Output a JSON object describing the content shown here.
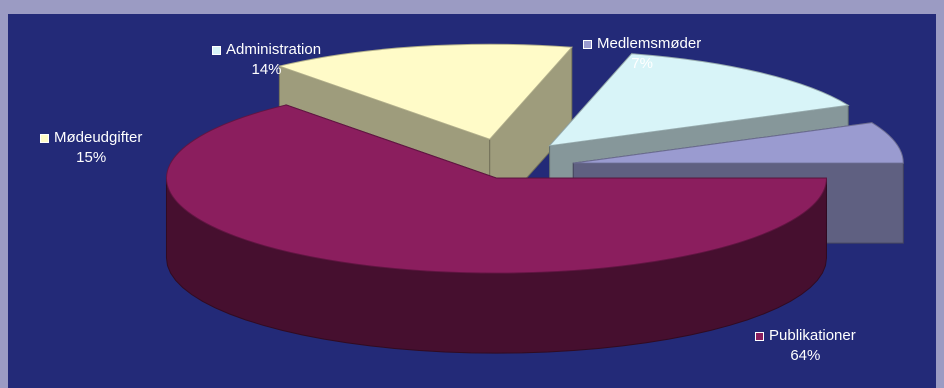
{
  "chart_data": {
    "type": "pie",
    "title": "",
    "three_d": true,
    "exploded": true,
    "slices": [
      {
        "label": "Publikationer",
        "value": 64,
        "value_label": "64%",
        "color": "#8b1e5e"
      },
      {
        "label": "Mødeudgifter",
        "value": 15,
        "value_label": "15%",
        "color": "#fffbc8"
      },
      {
        "label": "Administration",
        "value": 14,
        "value_label": "14%",
        "color": "#d8f4f8"
      },
      {
        "label": "Medlemsmøder",
        "value": 7,
        "value_label": "7%",
        "color": "#9a9bd0"
      }
    ],
    "colors": {
      "background": "#232a78",
      "frame": "#9b9bc3",
      "label_text": "#ffffff"
    }
  }
}
